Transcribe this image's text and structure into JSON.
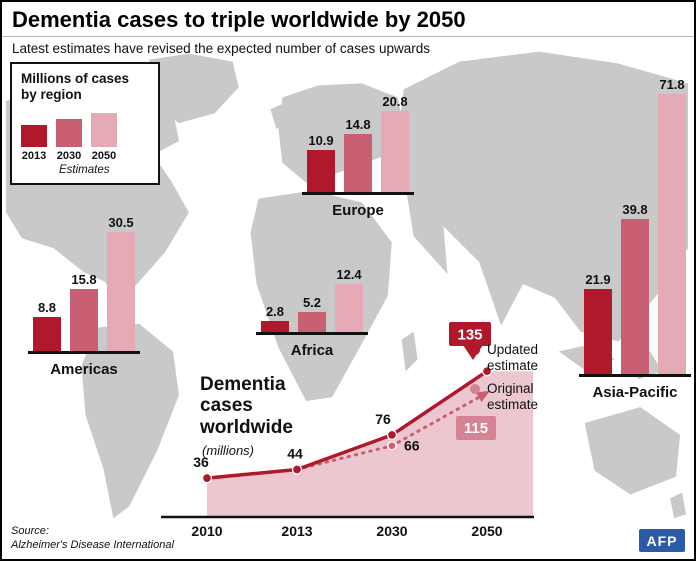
{
  "header": {
    "title": "Dementia cases to triple worldwide by 2050",
    "subtitle": "Latest estimates have revised the expected number of cases upwards"
  },
  "legend": {
    "title_line1": "Millions of cases",
    "title_line2": "by region",
    "estimates_label": "Estimates"
  },
  "footer": {
    "source_label": "Source:",
    "source_name": "Alzheimer's Disease International",
    "logo": "AFP"
  },
  "chart_data": [
    {
      "type": "bar",
      "title": "Millions of dementia cases by region",
      "categories": [
        "2013",
        "2030",
        "2050"
      ],
      "colors": [
        "#b2182b",
        "#c95f72",
        "#e5aab6"
      ],
      "series": [
        {
          "name": "Americas",
          "values": [
            8.8,
            15.8,
            30.5
          ]
        },
        {
          "name": "Europe",
          "values": [
            10.9,
            14.8,
            20.8
          ]
        },
        {
          "name": "Africa",
          "values": [
            2.8,
            5.2,
            12.4
          ]
        },
        {
          "name": "Asia-Pacific",
          "values": [
            21.9,
            39.8,
            71.8
          ]
        }
      ]
    },
    {
      "type": "line",
      "title": "Dementia cases worldwide",
      "subtitle": "(millions)",
      "x": [
        "2010",
        "2013",
        "2030",
        "2050"
      ],
      "ylim": [
        0,
        150
      ],
      "series": [
        {
          "name": "Updated estimate",
          "values": [
            36,
            44,
            76,
            135
          ],
          "color": "#b2182b",
          "style": "solid",
          "area": true
        },
        {
          "name": "Original estimate",
          "values": [
            null,
            44,
            66,
            115
          ],
          "color": "#c95f72",
          "style": "dotted"
        }
      ],
      "callout_color_original": "#d68493",
      "area_color": "#ecc7d0"
    }
  ]
}
